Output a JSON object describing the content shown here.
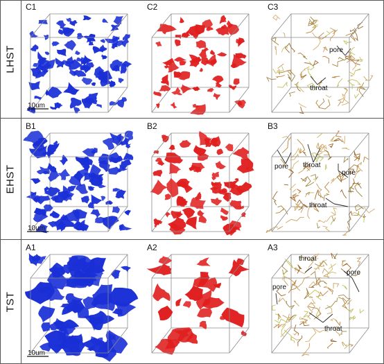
{
  "figure": {
    "rows": [
      {
        "label": "LHST",
        "panels": [
          {
            "label": "C1",
            "type": "pore-3d",
            "color": "#1a2fd6",
            "scale_bar": "10um",
            "annotations": []
          },
          {
            "label": "C2",
            "type": "throat-3d",
            "color": "#e01e1e",
            "annotations": []
          },
          {
            "label": "C3",
            "type": "network",
            "annotations": [
              {
                "text": "pore"
              },
              {
                "text": "throat"
              }
            ]
          }
        ]
      },
      {
        "label": "EHST",
        "panels": [
          {
            "label": "B1",
            "type": "pore-3d",
            "color": "#1a2fd6",
            "scale_bar": "10um",
            "annotations": []
          },
          {
            "label": "B2",
            "type": "throat-3d",
            "color": "#e01e1e",
            "annotations": []
          },
          {
            "label": "B3",
            "type": "network",
            "annotations": [
              {
                "text": "pore"
              },
              {
                "text": "throat"
              },
              {
                "text": "pore"
              },
              {
                "text": "throat"
              }
            ]
          }
        ]
      },
      {
        "label": "TST",
        "panels": [
          {
            "label": "A1",
            "type": "pore-3d",
            "color": "#1a2fd6",
            "scale_bar": "10um",
            "annotations": []
          },
          {
            "label": "A2",
            "type": "throat-3d",
            "color": "#e01e1e",
            "annotations": []
          },
          {
            "label": "A3",
            "type": "network",
            "annotations": [
              {
                "text": "throat"
              },
              {
                "text": "pore"
              },
              {
                "text": "pore"
              },
              {
                "text": "throat"
              }
            ]
          }
        ]
      }
    ]
  }
}
